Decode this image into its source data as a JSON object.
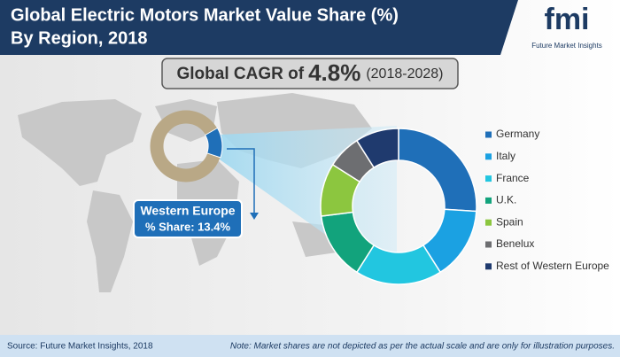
{
  "chart_data": {
    "type": "donut",
    "title_lines": [
      "Global Electric Motors Market Value Share (%)",
      "By Region, 2018"
    ],
    "logo": {
      "mark": "fmi",
      "name": "Future Market Insights"
    },
    "cagr": {
      "prefix": "Global CAGR of",
      "value": "4.8%",
      "period": "(2018-2028)"
    },
    "inset": {
      "name": "Western Europe",
      "value": 13.4,
      "value_label": "% Share: 13.4%",
      "color": "#1f6fb8",
      "rest_color": "#b9a886"
    },
    "categories": [
      "Germany",
      "Italy",
      "France",
      "U.K.",
      "Spain",
      "Benelux",
      "Rest of Western Europe"
    ],
    "values": [
      26,
      15,
      18,
      14,
      11,
      7,
      9
    ],
    "colors": [
      "#1f6fb8",
      "#1ba1e2",
      "#22c6e0",
      "#12a37c",
      "#8cc63f",
      "#6d6e71",
      "#1f3a6e"
    ],
    "legend": "right",
    "source": "Source: Future Market Insights, 2018",
    "note": "Note: Market shares are not depicted as per the actual scale and are only for illustration purposes."
  }
}
